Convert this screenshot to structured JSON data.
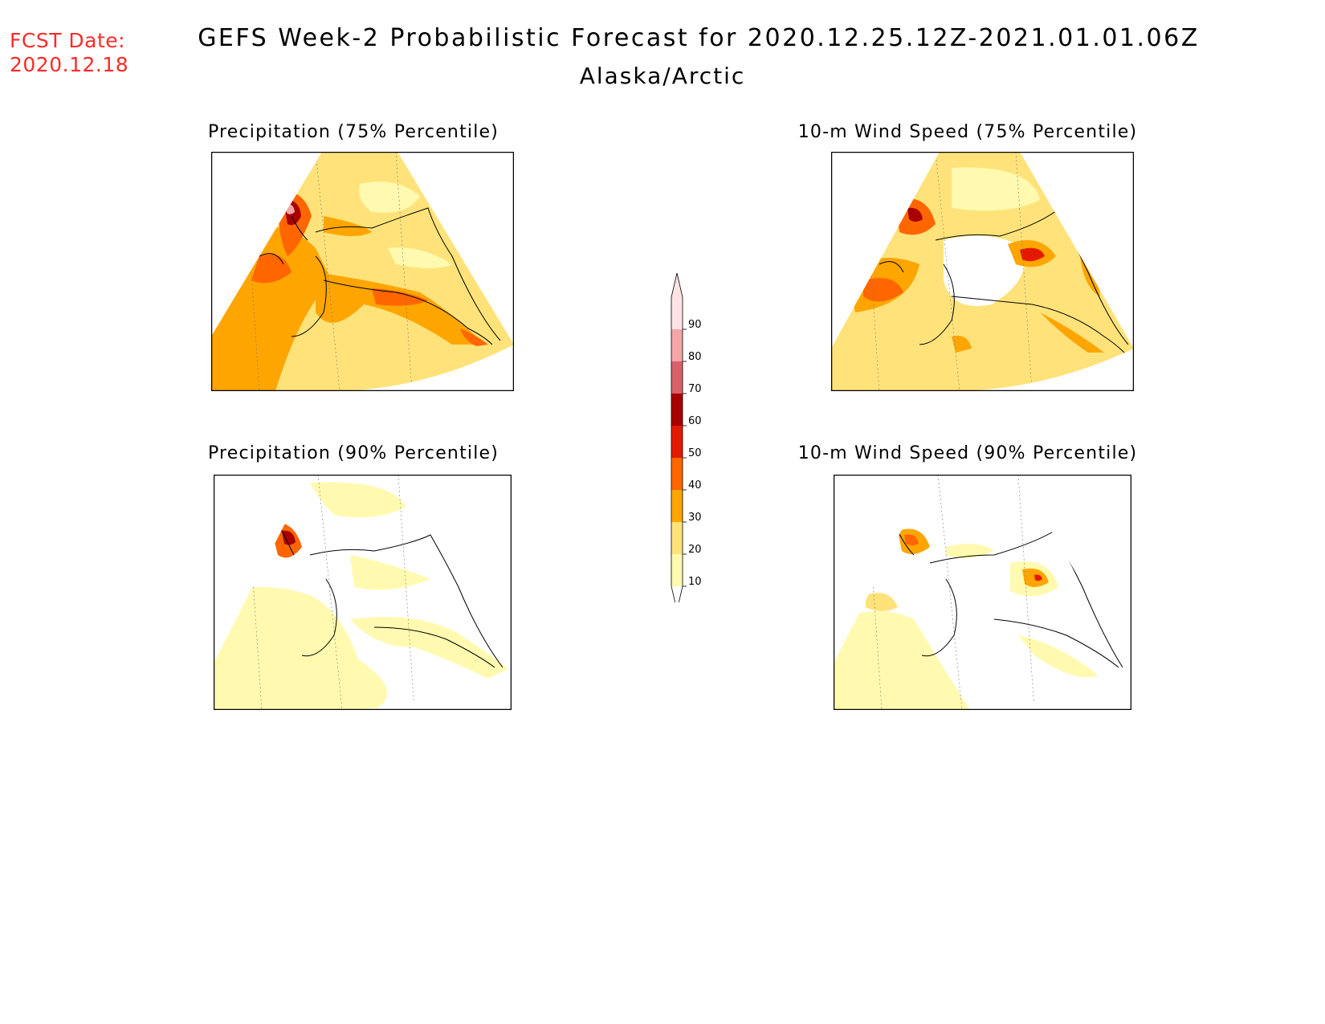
{
  "forecast_date": {
    "label": "FCST Date:",
    "value": "2020.12.18"
  },
  "title": "GEFS Week-2 Probabilistic Forecast for 2020.12.25.12Z-2021.01.01.06Z",
  "subtitle": "Alaska/Arctic",
  "panels": [
    {
      "id": "precip-75",
      "title": "Precipitation (75% Percentile)"
    },
    {
      "id": "wind-75",
      "title": "10-m Wind Speed (75% Percentile)"
    },
    {
      "id": "precip-90",
      "title": "Precipitation (90% Percentile)"
    },
    {
      "id": "wind-90",
      "title": "10-m Wind Speed (90% Percentile)"
    }
  ],
  "colorbar": {
    "levels": [
      "10",
      "20",
      "30",
      "40",
      "50",
      "60",
      "70",
      "80",
      "90"
    ],
    "colors": [
      "#fffab0",
      "#ffe37a",
      "#ffa500",
      "#ff6600",
      "#e41a00",
      "#a80000",
      "#d9626a",
      "#f4a6a8",
      "#fde3e4"
    ]
  },
  "palette": {
    "c10": "#fffab0",
    "c20": "#ffe37a",
    "c30": "#ffa500",
    "c40": "#ff6600",
    "c50": "#e41a00",
    "c60": "#a80000",
    "c70": "#d9626a",
    "c80": "#f4a6a8"
  }
}
